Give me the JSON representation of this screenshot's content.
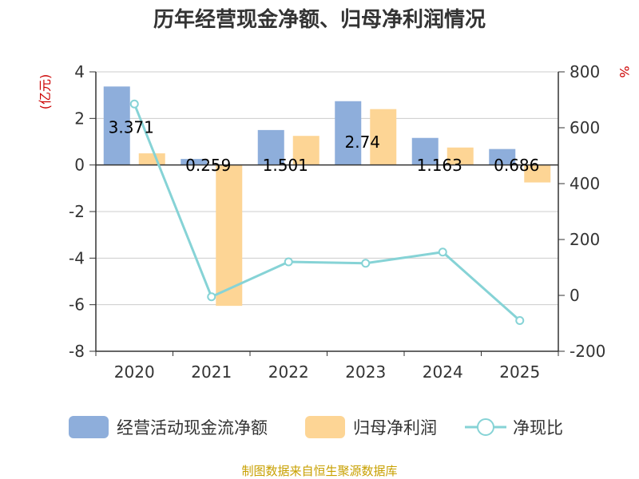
{
  "chart_data": {
    "type": "bar",
    "title": "历年经营现金净额、归母净利润情况",
    "categories": [
      "2020",
      "2021",
      "2022",
      "2023",
      "2024",
      "2025"
    ],
    "left_axis": {
      "unit": "(亿元)",
      "ylim": [
        -8,
        4
      ],
      "ticks": [
        "4",
        "2",
        "0",
        "-2",
        "-4",
        "-6",
        "-8"
      ]
    },
    "right_axis": {
      "unit": "%",
      "ylim": [
        -200,
        800
      ],
      "ticks": [
        "800",
        "600",
        "400",
        "200",
        "0",
        "-200"
      ]
    },
    "grid": true,
    "legend_position": "bottom",
    "series": [
      {
        "name": "经营活动现金流净额",
        "type": "bar",
        "axis": "left",
        "color": "#8eaedb",
        "values": [
          3.371,
          0.259,
          1.501,
          2.74,
          1.163,
          0.686
        ],
        "labels": [
          "3.371",
          "0.259",
          "1.501",
          "2.74",
          "1.163",
          "0.686"
        ]
      },
      {
        "name": "归母净利润",
        "type": "bar",
        "axis": "left",
        "color": "#fdd595",
        "values": [
          0.5,
          -6.05,
          1.25,
          2.4,
          0.75,
          -0.75
        ]
      },
      {
        "name": "净现比",
        "type": "line",
        "axis": "right",
        "color": "#86d3d6",
        "values": [
          685,
          -5,
          120,
          115,
          155,
          -90
        ]
      }
    ],
    "source": "制图数据来自恒生聚源数据库"
  }
}
